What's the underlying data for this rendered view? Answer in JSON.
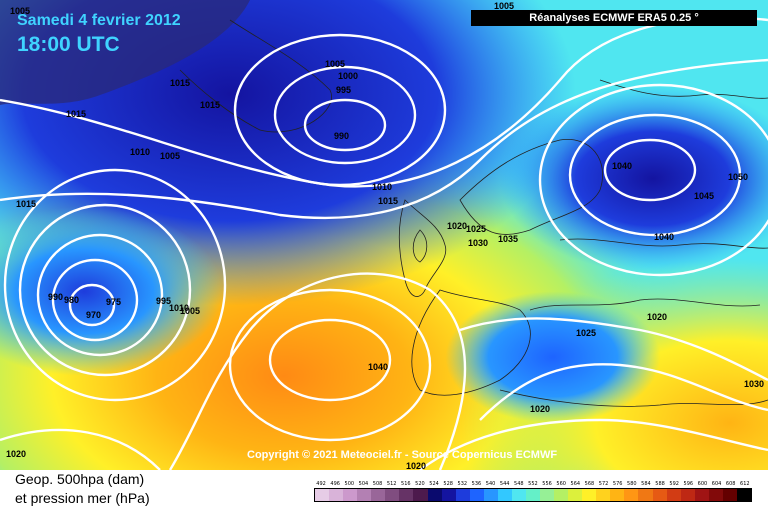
{
  "header": {
    "date": "Samedi 4 fevrier 2012",
    "time": "18:00 UTC",
    "source": "Réanalyses ECMWF ERA5 0.25 °"
  },
  "footer": {
    "copyright": "Copyright © 2021 Meteociel.fr - Source Copernicus ECMWF",
    "legend_line1": "Geop. 500hpa (dam)",
    "legend_line2": "et pression mer (hPa)"
  },
  "isobar_labels": [
    {
      "text": "1005"
    },
    {
      "text": "1015"
    },
    {
      "text": "1015"
    },
    {
      "text": "1015"
    },
    {
      "text": "1010"
    },
    {
      "text": "1005"
    },
    {
      "text": "1015"
    },
    {
      "text": "1005"
    },
    {
      "text": "1000"
    },
    {
      "text": "995"
    },
    {
      "text": "990"
    },
    {
      "text": "1010"
    },
    {
      "text": "1015"
    },
    {
      "text": "1005"
    },
    {
      "text": "1040"
    },
    {
      "text": "1050"
    },
    {
      "text": "1045"
    },
    {
      "text": "1040"
    },
    {
      "text": "1020"
    },
    {
      "text": "1025"
    },
    {
      "text": "1030"
    },
    {
      "text": "1035"
    },
    {
      "text": "990"
    },
    {
      "text": "980"
    },
    {
      "text": "975"
    },
    {
      "text": "970"
    },
    {
      "text": "995"
    },
    {
      "text": "1010"
    },
    {
      "text": "1005"
    },
    {
      "text": "1040"
    },
    {
      "text": "1025"
    },
    {
      "text": "1020"
    },
    {
      "text": "1030"
    },
    {
      "text": "1020"
    },
    {
      "text": "1020"
    },
    {
      "text": "1020"
    }
  ],
  "color_scale": {
    "labels": [
      "492",
      "496",
      "500",
      "504",
      "508",
      "512",
      "516",
      "520",
      "524",
      "528",
      "532",
      "536",
      "540",
      "544",
      "548",
      "552",
      "556",
      "560",
      "564",
      "568",
      "572",
      "576",
      "580",
      "584",
      "588",
      "592",
      "596",
      "600",
      "604",
      "608",
      "612"
    ],
    "colors": [
      "#e6cce6",
      "#d9b3d9",
      "#cc99cc",
      "#b380b3",
      "#996699",
      "#804d80",
      "#663366",
      "#4d1a4d",
      "#0a0a6e",
      "#1414a0",
      "#1e3cdc",
      "#1e64ff",
      "#2896ff",
      "#32c8ff",
      "#50e6f0",
      "#64f0c8",
      "#96f096",
      "#b4f064",
      "#dcf03c",
      "#fff028",
      "#ffd21e",
      "#ffb414",
      "#ff9614",
      "#f07814",
      "#e65a14",
      "#d23c14",
      "#be2814",
      "#a01414",
      "#820a0a",
      "#640000",
      "#000000"
    ]
  }
}
